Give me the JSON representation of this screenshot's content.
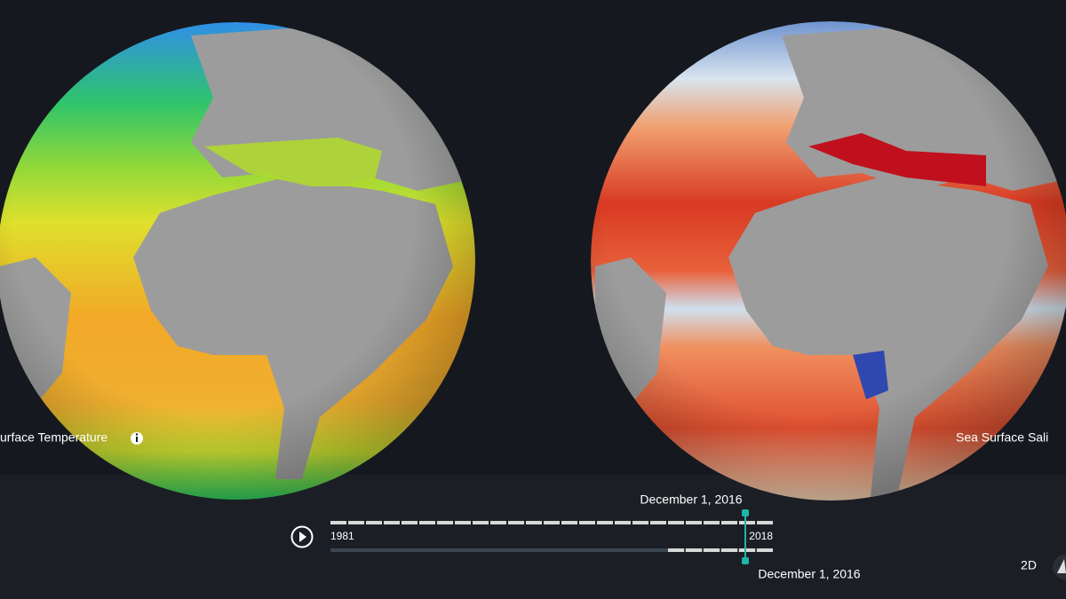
{
  "layers": {
    "left_label": "urface Temperature",
    "right_label": "Sea Surface Sali"
  },
  "timeline": {
    "start_label": "1981",
    "end_label": "2018",
    "selected_top": "December 1, 2016",
    "selected_bottom": "December 1, 2016"
  },
  "view_toggle": "2D"
}
